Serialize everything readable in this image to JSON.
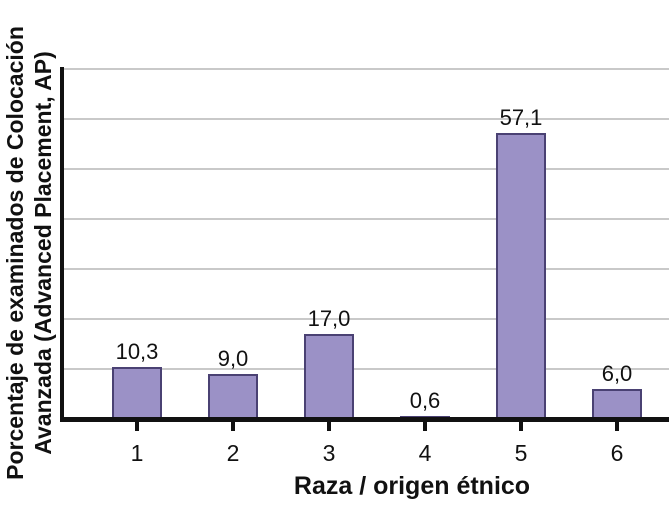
{
  "chart_data": {
    "type": "bar",
    "categories": [
      "1",
      "2",
      "3",
      "4",
      "5",
      "6"
    ],
    "values": [
      10.3,
      9.0,
      17.0,
      0.6,
      57.1,
      6.0
    ],
    "value_labels": [
      "10,3",
      "9,0",
      "17,0",
      "0,6",
      "57,1",
      "6,0"
    ],
    "title": "",
    "xlabel": "Raza / origen étnico",
    "ylabel_line1": "Porcentaje de examinados de Colocación",
    "ylabel_line2": "Avanzada (Advanced Placement, AP)",
    "ylim": [
      0,
      70
    ],
    "grid_step": 10,
    "grid": "horizontal-only",
    "legend_position": "none",
    "y_tick_labels_shown": false,
    "colors": {
      "bar_fill": "#9b91c6",
      "bar_border": "#4a4173",
      "gridline": "#c9c9c9",
      "axis": "#111111",
      "text": "#111111"
    }
  }
}
